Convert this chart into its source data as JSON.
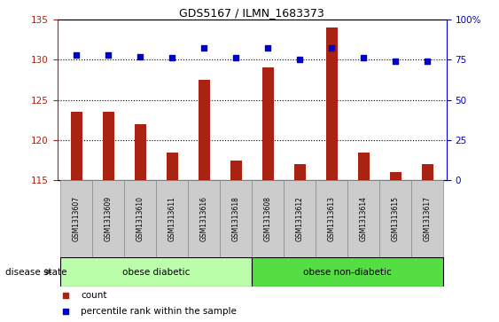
{
  "title": "GDS5167 / ILMN_1683373",
  "samples": [
    "GSM1313607",
    "GSM1313609",
    "GSM1313610",
    "GSM1313611",
    "GSM1313616",
    "GSM1313618",
    "GSM1313608",
    "GSM1313612",
    "GSM1313613",
    "GSM1313614",
    "GSM1313615",
    "GSM1313617"
  ],
  "counts": [
    123.5,
    123.5,
    122.0,
    118.5,
    127.5,
    117.5,
    129.0,
    117.0,
    134.0,
    118.5,
    116.0,
    117.0
  ],
  "percentiles": [
    78,
    78,
    77,
    76,
    82,
    76,
    82,
    75,
    82,
    76,
    74,
    74
  ],
  "ylim_left": [
    115,
    135
  ],
  "ylim_right": [
    0,
    100
  ],
  "yticks_left": [
    115,
    120,
    125,
    130,
    135
  ],
  "yticks_right": [
    0,
    25,
    50,
    75,
    100
  ],
  "ytick_right_labels": [
    "0",
    "25",
    "50",
    "75",
    "100%"
  ],
  "bar_color": "#AA2211",
  "dot_color": "#0000CC",
  "group1_label": "obese diabetic",
  "group2_label": "obese non-diabetic",
  "group1_count": 6,
  "group2_count": 6,
  "group_bg_color_light": "#BBFFAA",
  "group_bg_color_dark": "#55DD44",
  "legend_count_label": "count",
  "legend_percentile_label": "percentile rank within the sample",
  "disease_state_label": "disease state",
  "tick_label_bg": "#CCCCCC",
  "baseline": 115,
  "dot_size": 25,
  "grid_yticks": [
    120,
    125,
    130
  ]
}
